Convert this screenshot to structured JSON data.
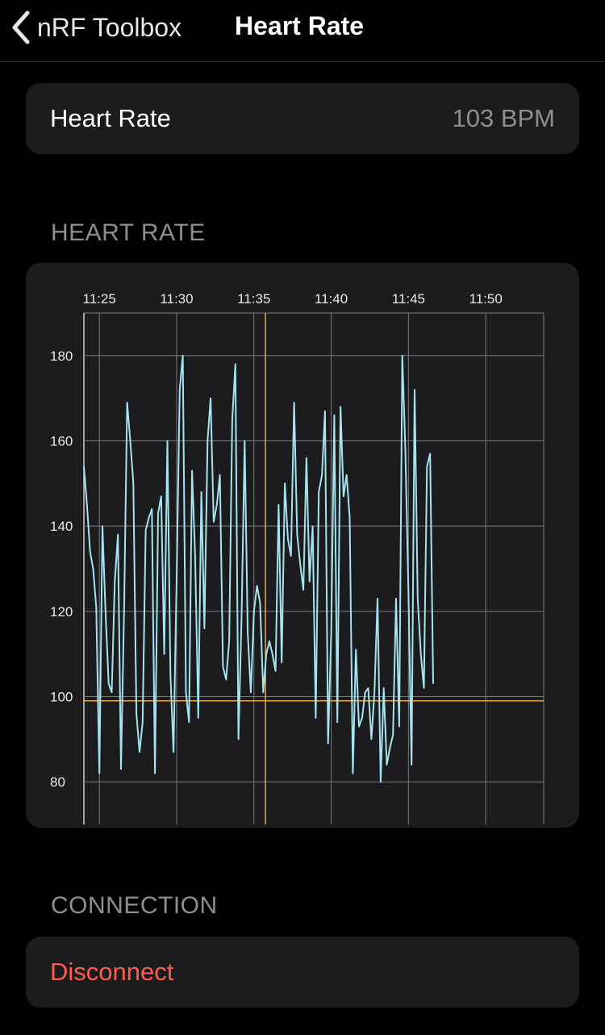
{
  "nav": {
    "back_label": "nRF Toolbox",
    "title": "Heart Rate"
  },
  "heart_rate_card": {
    "label": "Heart Rate",
    "value": "103 BPM"
  },
  "sections": {
    "heart_rate": "HEART RATE",
    "connection": "CONNECTION"
  },
  "connection": {
    "disconnect_label": "Disconnect"
  },
  "colors": {
    "background": "#000000",
    "card": "#1c1c1e",
    "line": "#a6e3f0",
    "crosshair": "#e8a84a",
    "grid": "#7a7a7e",
    "destructive": "#ff5c4f"
  },
  "chart_data": {
    "type": "line",
    "x_ticks": [
      "11:25",
      "11:30",
      "11:35",
      "11:40",
      "11:45",
      "11:50"
    ],
    "y_ticks": [
      80,
      100,
      120,
      140,
      160,
      180
    ],
    "x_range_minutes": [
      0,
      29.75
    ],
    "ylim": [
      70,
      190
    ],
    "crosshair": {
      "x_minutes": 11.75,
      "y": 99
    },
    "series": [
      {
        "x": [
          0,
          0.2,
          0.4,
          0.6,
          0.8,
          1.0,
          1.2,
          1.4,
          1.6,
          1.8,
          2.0,
          2.2,
          2.4,
          2.6,
          2.8,
          3.0,
          3.2,
          3.4,
          3.6,
          3.8,
          4.0,
          4.2,
          4.4,
          4.6,
          4.8,
          5.0,
          5.2,
          5.4,
          5.6,
          5.8,
          6.0,
          6.2,
          6.4,
          6.6,
          6.8,
          7.0,
          7.2,
          7.4,
          7.6,
          7.8,
          8.0,
          8.2,
          8.4,
          8.6,
          8.8,
          9.0,
          9.2,
          9.4,
          9.6,
          9.8,
          10.0,
          10.2,
          10.4,
          10.6,
          10.8,
          11.0,
          11.2,
          11.4,
          11.6,
          11.8,
          12.0,
          12.2,
          12.4,
          12.6,
          12.8,
          13.0,
          13.2,
          13.4,
          13.6,
          13.8,
          14.0,
          14.2,
          14.4,
          14.6,
          14.8,
          15.0,
          15.2,
          15.4,
          15.6,
          15.8,
          16.0,
          16.2,
          16.4,
          16.6,
          16.8,
          17.0,
          17.2,
          17.4,
          17.6,
          17.8,
          18.0,
          18.2,
          18.4,
          18.6,
          18.8,
          19.0,
          19.2,
          19.4,
          19.6,
          19.8,
          20.0,
          20.2,
          20.4,
          20.6,
          20.8,
          21.0,
          21.2,
          21.4,
          21.6,
          21.8,
          22.0,
          22.2,
          22.4,
          22.6
        ],
        "values": [
          154,
          145,
          134,
          130,
          121,
          82,
          140,
          120,
          103,
          101,
          127,
          138,
          83,
          120,
          169,
          160,
          150,
          96,
          87,
          94,
          139,
          142,
          144,
          82,
          143,
          147,
          110,
          160,
          105,
          87,
          128,
          172,
          180,
          101,
          94,
          153,
          133,
          95,
          148,
          116,
          160,
          170,
          141,
          145,
          152,
          107,
          104,
          113,
          165,
          178,
          90,
          118,
          160,
          115,
          101,
          120,
          126,
          122,
          101,
          110,
          113,
          110,
          106,
          145,
          108,
          150,
          137,
          133,
          169,
          138,
          131,
          125,
          156,
          127,
          140,
          95,
          148,
          152,
          167,
          89,
          115,
          166,
          94,
          168,
          147,
          152,
          142,
          82,
          111,
          93,
          95,
          101,
          102,
          90,
          101,
          123,
          80,
          102,
          84,
          88,
          91,
          123,
          93,
          180,
          158,
          124,
          84,
          172,
          123,
          110,
          102,
          154,
          157,
          103
        ]
      }
    ]
  }
}
